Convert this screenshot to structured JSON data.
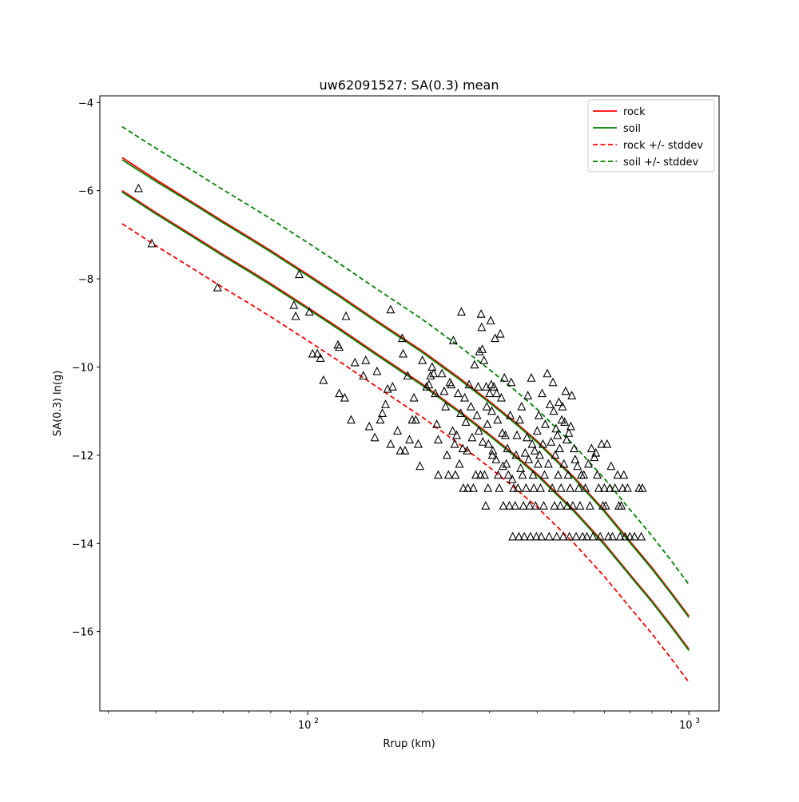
{
  "chart_data": {
    "type": "scatter",
    "title": "uw62091527: SA(0.3) mean",
    "xlabel": "Rrup (km)",
    "ylabel": "SA(0.3) ln(g)",
    "xscale": "log",
    "xlim": [
      28.5,
      1200
    ],
    "ylim": [
      -17.8,
      -3.85
    ],
    "y_ticks": [
      -4,
      -6,
      -8,
      -10,
      -12,
      -14,
      -16
    ],
    "y_tick_labels": [
      "−4",
      "−6",
      "−8",
      "−10",
      "−12",
      "−14",
      "−16"
    ],
    "x_major_ticks": [
      100,
      1000
    ],
    "x_tick_labels": [
      {
        "base": "10",
        "exp": "2"
      },
      {
        "base": "10",
        "exp": "3"
      }
    ],
    "x_minor_ticks": [
      30,
      40,
      50,
      60,
      70,
      80,
      90,
      200,
      300,
      400,
      500,
      600,
      700,
      800,
      900
    ],
    "legend_position": "top-right",
    "colors": {
      "rock": "#ff0000",
      "soil": "#008000",
      "marker": "#000000"
    },
    "series": [
      {
        "name": "rock",
        "style": "solid",
        "color": "#ff0000",
        "x": [
          32.6,
          40,
          50,
          60,
          70,
          80,
          100,
          120,
          150,
          200,
          250,
          300,
          350,
          400,
          500,
          600,
          700,
          800,
          900,
          1000
        ],
        "y_upper": [
          -5.25,
          -5.75,
          -6.27,
          -6.7,
          -7.05,
          -7.36,
          -7.9,
          -8.35,
          -8.92,
          -9.64,
          -10.25,
          -10.78,
          -11.25,
          -11.68,
          -12.5,
          -13.25,
          -13.95,
          -14.55,
          -15.12,
          -15.65
        ],
        "y_lower": [
          -6.0,
          -6.5,
          -7.02,
          -7.45,
          -7.8,
          -8.11,
          -8.65,
          -9.1,
          -9.67,
          -10.39,
          -11.0,
          -11.53,
          -12.0,
          -12.43,
          -13.25,
          -14.0,
          -14.7,
          -15.3,
          -15.87,
          -16.4
        ]
      },
      {
        "name": "soil",
        "style": "solid",
        "color": "#008000",
        "x": [
          32.6,
          40,
          50,
          60,
          70,
          80,
          100,
          120,
          150,
          200,
          250,
          300,
          350,
          400,
          500,
          600,
          700,
          800,
          900,
          1000
        ],
        "y_upper": [
          -5.3,
          -5.79,
          -6.3,
          -6.73,
          -7.08,
          -7.39,
          -7.93,
          -8.38,
          -8.95,
          -9.67,
          -10.28,
          -10.81,
          -11.28,
          -11.71,
          -12.53,
          -13.28,
          -13.98,
          -14.58,
          -15.15,
          -15.68
        ],
        "y_lower": [
          -6.03,
          -6.53,
          -7.05,
          -7.48,
          -7.83,
          -8.14,
          -8.68,
          -9.13,
          -9.7,
          -10.42,
          -11.03,
          -11.56,
          -12.03,
          -12.46,
          -13.28,
          -14.03,
          -14.73,
          -15.33,
          -15.9,
          -16.43
        ]
      },
      {
        "name": "rock +/- stddev",
        "style": "dashed",
        "color": "#ff0000",
        "x": [
          32.6,
          40,
          50,
          60,
          70,
          80,
          100,
          120,
          150,
          200,
          250,
          300,
          350,
          400,
          500,
          600,
          700,
          800,
          900,
          1000
        ],
        "y": [
          -6.75,
          -7.25,
          -7.77,
          -8.2,
          -8.55,
          -8.86,
          -9.4,
          -9.85,
          -10.42,
          -11.14,
          -11.75,
          -12.28,
          -12.75,
          -13.18,
          -14.0,
          -14.75,
          -15.45,
          -16.05,
          -16.62,
          -17.15
        ]
      },
      {
        "name": "soil +/- stddev",
        "style": "dashed",
        "color": "#008000",
        "x": [
          32.6,
          40,
          50,
          60,
          70,
          80,
          100,
          120,
          150,
          200,
          250,
          300,
          350,
          400,
          500,
          600,
          700,
          800,
          900,
          1000
        ],
        "y": [
          -4.55,
          -5.04,
          -5.55,
          -5.98,
          -6.33,
          -6.64,
          -7.18,
          -7.63,
          -8.2,
          -8.92,
          -9.53,
          -10.06,
          -10.53,
          -10.96,
          -11.78,
          -12.53,
          -13.23,
          -13.83,
          -14.4,
          -14.93
        ]
      }
    ],
    "observations": {
      "marker": "triangle-open",
      "color": "#000000",
      "points": [
        [
          36,
          -5.95
        ],
        [
          39,
          -7.2
        ],
        [
          58,
          -8.2
        ],
        [
          95,
          -7.9
        ],
        [
          92,
          -8.6
        ],
        [
          93,
          -8.85
        ],
        [
          101,
          -8.75
        ],
        [
          103,
          -9.7
        ],
        [
          106,
          -9.7
        ],
        [
          108,
          -9.8
        ],
        [
          110,
          -10.3
        ],
        [
          120,
          -9.5
        ],
        [
          121,
          -9.55
        ],
        [
          121,
          -10.6
        ],
        [
          125,
          -10.7
        ],
        [
          126,
          -8.85
        ],
        [
          130,
          -11.2
        ],
        [
          133,
          -9.9
        ],
        [
          140,
          -10.2
        ],
        [
          142,
          -9.85
        ],
        [
          145,
          -11.35
        ],
        [
          150,
          -11.6
        ],
        [
          152,
          -10.1
        ],
        [
          155,
          -11.2
        ],
        [
          157,
          -11.05
        ],
        [
          160,
          -10.85
        ],
        [
          162,
          -10.5
        ],
        [
          165,
          -8.7
        ],
        [
          165,
          -11.75
        ],
        [
          167,
          -10.45
        ],
        [
          172,
          -11.45
        ],
        [
          175,
          -11.9
        ],
        [
          177,
          -9.35
        ],
        [
          178,
          -9.7
        ],
        [
          180,
          -11.9
        ],
        [
          183,
          -10.2
        ],
        [
          185,
          -11.65
        ],
        [
          188,
          -11.2
        ],
        [
          190,
          -10.7
        ],
        [
          192,
          -11.2
        ],
        [
          195,
          -11.75
        ],
        [
          197,
          -12.25
        ],
        [
          200,
          -9.85
        ],
        [
          205,
          -10.45
        ],
        [
          208,
          -10.4
        ],
        [
          210,
          -10.2
        ],
        [
          212,
          -10.0
        ],
        [
          214,
          -10.15
        ],
        [
          216,
          -10.6
        ],
        [
          218,
          -11.3
        ],
        [
          220,
          -11.65
        ],
        [
          220,
          -12.45
        ],
        [
          225,
          -10.15
        ],
        [
          228,
          -10.55
        ],
        [
          230,
          -10.9
        ],
        [
          232,
          -12.0
        ],
        [
          234,
          -12.45
        ],
        [
          236,
          -10.35
        ],
        [
          238,
          -10.4
        ],
        [
          240,
          -11.45
        ],
        [
          241,
          -9.4
        ],
        [
          243,
          -11.75
        ],
        [
          244,
          -12.45
        ],
        [
          246,
          -11.55
        ],
        [
          248,
          -10.6
        ],
        [
          250,
          -12.2
        ],
        [
          252,
          -11.05
        ],
        [
          253,
          -8.75
        ],
        [
          255,
          -11.85
        ],
        [
          256,
          -12.75
        ],
        [
          258,
          -10.7
        ],
        [
          260,
          -11.25
        ],
        [
          262,
          -11.9
        ],
        [
          263,
          -12.75
        ],
        [
          265,
          -10.4
        ],
        [
          268,
          -10.9
        ],
        [
          270,
          -11.6
        ],
        [
          272,
          -12.75
        ],
        [
          274,
          -9.95
        ],
        [
          276,
          -12.45
        ],
        [
          278,
          -11.1
        ],
        [
          280,
          -10.45
        ],
        [
          281,
          -11.45
        ],
        [
          282,
          -9.65
        ],
        [
          284,
          -12.45
        ],
        [
          285,
          -8.8
        ],
        [
          286,
          -9.1
        ],
        [
          287,
          -9.6
        ],
        [
          288,
          -11.7
        ],
        [
          290,
          -9.85
        ],
        [
          291,
          -12.45
        ],
        [
          293,
          -13.15
        ],
        [
          294,
          -10.45
        ],
        [
          295,
          -10.9
        ],
        [
          296,
          -11.3
        ],
        [
          297,
          -12.75
        ],
        [
          298,
          -11.75
        ],
        [
          300,
          -10.6
        ],
        [
          302,
          -8.95
        ],
        [
          303,
          -10.4
        ],
        [
          304,
          -11.0
        ],
        [
          305,
          -12.0
        ],
        [
          306,
          -11.9
        ],
        [
          308,
          -10.45
        ],
        [
          310,
          -9.35
        ],
        [
          312,
          -12.1
        ],
        [
          313,
          -10.6
        ],
        [
          315,
          -11.2
        ],
        [
          316,
          -12.45
        ],
        [
          318,
          -12.75
        ],
        [
          320,
          -9.25
        ],
        [
          322,
          -10.7
        ],
        [
          324,
          -11.5
        ],
        [
          325,
          -12.25
        ],
        [
          326,
          -13.15
        ],
        [
          328,
          -10.25
        ],
        [
          330,
          -11.55
        ],
        [
          332,
          -12.2
        ],
        [
          334,
          -11.85
        ],
        [
          336,
          -12.45
        ],
        [
          338,
          -13.15
        ],
        [
          340,
          -11.1
        ],
        [
          342,
          -10.35
        ],
        [
          344,
          -12.55
        ],
        [
          345,
          -13.85
        ],
        [
          347,
          -12.75
        ],
        [
          350,
          -13.15
        ],
        [
          352,
          -12.0
        ],
        [
          354,
          -11.55
        ],
        [
          356,
          -12.75
        ],
        [
          358,
          -13.85
        ],
        [
          360,
          -11.2
        ],
        [
          362,
          -12.3
        ],
        [
          364,
          -10.9
        ],
        [
          366,
          -12.45
        ],
        [
          368,
          -13.15
        ],
        [
          370,
          -13.85
        ],
        [
          372,
          -11.95
        ],
        [
          374,
          -12.75
        ],
        [
          376,
          -11.6
        ],
        [
          378,
          -10.65
        ],
        [
          380,
          -12.1
        ],
        [
          382,
          -13.15
        ],
        [
          384,
          -13.85
        ],
        [
          386,
          -10.25
        ],
        [
          388,
          -11.75
        ],
        [
          390,
          -12.45
        ],
        [
          392,
          -12.75
        ],
        [
          394,
          -11.9
        ],
        [
          396,
          -13.15
        ],
        [
          398,
          -13.85
        ],
        [
          400,
          -11.45
        ],
        [
          402,
          -12.2
        ],
        [
          404,
          -11.1
        ],
        [
          406,
          -12.0
        ],
        [
          408,
          -12.75
        ],
        [
          410,
          -13.85
        ],
        [
          412,
          -10.6
        ],
        [
          414,
          -11.75
        ],
        [
          416,
          -13.15
        ],
        [
          418,
          -12.45
        ],
        [
          420,
          -11.3
        ],
        [
          425,
          -10.15
        ],
        [
          428,
          -12.2
        ],
        [
          430,
          -13.85
        ],
        [
          432,
          -10.85
        ],
        [
          435,
          -11.7
        ],
        [
          438,
          -12.75
        ],
        [
          440,
          -10.35
        ],
        [
          442,
          -11.0
        ],
        [
          444,
          -13.15
        ],
        [
          446,
          -12.0
        ],
        [
          448,
          -11.4
        ],
        [
          450,
          -13.85
        ],
        [
          452,
          -11.55
        ],
        [
          454,
          -12.45
        ],
        [
          456,
          -10.8
        ],
        [
          458,
          -11.85
        ],
        [
          460,
          -13.15
        ],
        [
          462,
          -12.75
        ],
        [
          464,
          -11.2
        ],
        [
          466,
          -10.9
        ],
        [
          468,
          -13.85
        ],
        [
          470,
          -12.2
        ],
        [
          472,
          -11.25
        ],
        [
          475,
          -10.55
        ],
        [
          478,
          -11.65
        ],
        [
          480,
          -13.15
        ],
        [
          482,
          -12.45
        ],
        [
          484,
          -11.5
        ],
        [
          486,
          -13.85
        ],
        [
          488,
          -12.75
        ],
        [
          490,
          -11.35
        ],
        [
          493,
          -10.65
        ],
        [
          496,
          -13.15
        ],
        [
          500,
          -11.85
        ],
        [
          503,
          -12.1
        ],
        [
          506,
          -13.85
        ],
        [
          510,
          -12.25
        ],
        [
          514,
          -12.75
        ],
        [
          518,
          -13.15
        ],
        [
          522,
          -12.45
        ],
        [
          526,
          -13.85
        ],
        [
          530,
          -12.45
        ],
        [
          535,
          -12.75
        ],
        [
          540,
          -13.85
        ],
        [
          545,
          -12.2
        ],
        [
          550,
          -13.15
        ],
        [
          555,
          -11.85
        ],
        [
          560,
          -13.85
        ],
        [
          565,
          -12.05
        ],
        [
          570,
          -11.95
        ],
        [
          575,
          -12.45
        ],
        [
          580,
          -12.75
        ],
        [
          585,
          -13.85
        ],
        [
          590,
          -11.75
        ],
        [
          595,
          -13.15
        ],
        [
          600,
          -12.75
        ],
        [
          605,
          -13.15
        ],
        [
          610,
          -11.75
        ],
        [
          615,
          -13.85
        ],
        [
          620,
          -12.75
        ],
        [
          625,
          -12.25
        ],
        [
          630,
          -13.85
        ],
        [
          640,
          -12.75
        ],
        [
          650,
          -12.45
        ],
        [
          655,
          -13.15
        ],
        [
          660,
          -13.85
        ],
        [
          665,
          -13.15
        ],
        [
          670,
          -12.75
        ],
        [
          675,
          -12.45
        ],
        [
          680,
          -13.85
        ],
        [
          690,
          -12.75
        ],
        [
          700,
          -13.85
        ],
        [
          720,
          -13.85
        ],
        [
          740,
          -12.75
        ],
        [
          750,
          -13.85
        ],
        [
          755,
          -12.75
        ]
      ]
    }
  }
}
